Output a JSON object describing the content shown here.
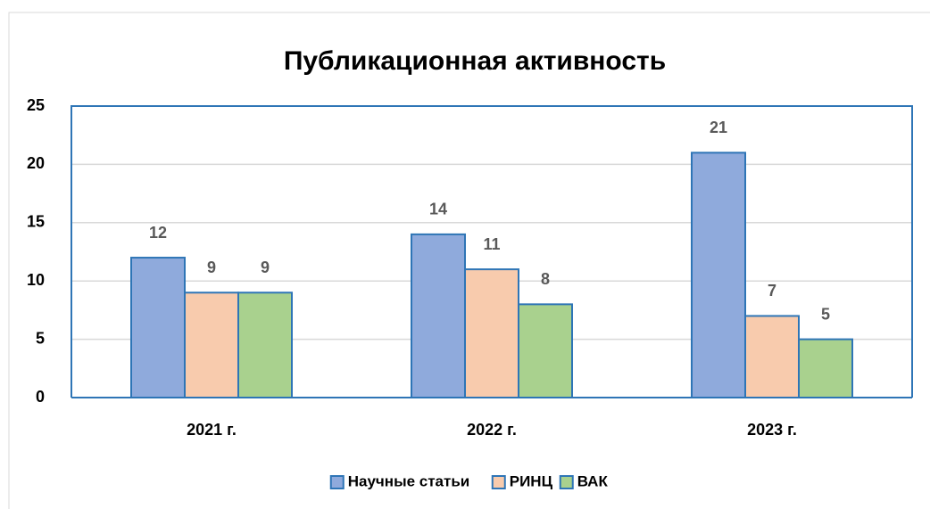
{
  "chart_data": {
    "type": "bar",
    "title": "Публикационная активность",
    "categories": [
      "2021 г.",
      "2022 г.",
      "2023 г."
    ],
    "series": [
      {
        "name": "Научные статьи",
        "color": "#8faadc",
        "values": [
          12,
          14,
          21
        ]
      },
      {
        "name": "РИНЦ",
        "color": "#f8cbad",
        "values": [
          9,
          11,
          7
        ]
      },
      {
        "name": "ВАК",
        "color": "#a9d18e",
        "values": [
          9,
          8,
          5
        ]
      }
    ],
    "ylim": [
      0,
      25
    ],
    "yticks": [
      0,
      5,
      10,
      15,
      20,
      25
    ],
    "grid": true,
    "legend": "bottom"
  }
}
